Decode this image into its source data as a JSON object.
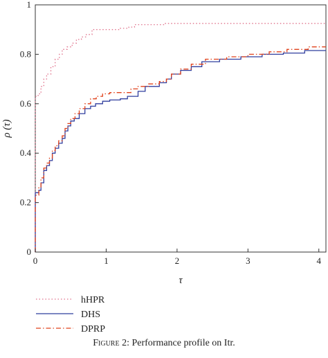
{
  "chart_data": {
    "type": "line",
    "title": "",
    "xlabel": "τ",
    "ylabel": "ρ (τ)",
    "xlim": [
      0,
      4.1
    ],
    "ylim": [
      0,
      1
    ],
    "xticks": [
      0,
      1,
      2,
      3,
      4
    ],
    "xtick_labels": [
      "0",
      "1",
      "2",
      "3",
      "4"
    ],
    "yticks": [
      0,
      0.2,
      0.4,
      0.6,
      0.8,
      1
    ],
    "ytick_labels": [
      "0",
      "0.2",
      "0.4",
      "0.6",
      "0.8",
      "1"
    ],
    "grid": false,
    "legend_position": "below-left",
    "series": [
      {
        "name": "hHPR",
        "color": "#e0708a",
        "dash": "dotted",
        "x": [
          0,
          0,
          0.04,
          0.08,
          0.12,
          0.16,
          0.22,
          0.28,
          0.34,
          0.38,
          0.45,
          0.52,
          0.58,
          0.65,
          0.72,
          0.8,
          1.0,
          1.2,
          1.32,
          1.4,
          1.6,
          1.82,
          1.9,
          2.5,
          3.0,
          3.5,
          4.1
        ],
        "y": [
          0,
          0.63,
          0.64,
          0.67,
          0.7,
          0.72,
          0.75,
          0.78,
          0.8,
          0.82,
          0.83,
          0.845,
          0.86,
          0.87,
          0.88,
          0.9,
          0.9,
          0.905,
          0.91,
          0.92,
          0.92,
          0.925,
          0.925,
          0.925,
          0.925,
          0.925,
          0.925
        ]
      },
      {
        "name": "DHS",
        "color": "#2f3d9e",
        "dash": "solid",
        "x": [
          0,
          0,
          0.05,
          0.08,
          0.12,
          0.16,
          0.2,
          0.24,
          0.28,
          0.33,
          0.38,
          0.42,
          0.46,
          0.5,
          0.55,
          0.62,
          0.7,
          0.78,
          0.85,
          0.95,
          1.05,
          1.2,
          1.3,
          1.45,
          1.55,
          1.75,
          1.85,
          1.92,
          2.05,
          2.2,
          2.35,
          2.6,
          2.9,
          3.2,
          3.5,
          3.8,
          4.1
        ],
        "y": [
          0,
          0.24,
          0.25,
          0.28,
          0.33,
          0.35,
          0.37,
          0.4,
          0.42,
          0.44,
          0.46,
          0.49,
          0.51,
          0.53,
          0.54,
          0.56,
          0.58,
          0.59,
          0.6,
          0.61,
          0.615,
          0.62,
          0.63,
          0.65,
          0.67,
          0.685,
          0.7,
          0.72,
          0.735,
          0.75,
          0.77,
          0.78,
          0.79,
          0.8,
          0.805,
          0.815,
          0.815
        ]
      },
      {
        "name": "DPRP",
        "color": "#e0401a",
        "dash": "dashdot",
        "x": [
          0,
          0,
          0.05,
          0.08,
          0.12,
          0.16,
          0.2,
          0.24,
          0.28,
          0.33,
          0.38,
          0.42,
          0.46,
          0.5,
          0.56,
          0.62,
          0.7,
          0.78,
          0.86,
          0.95,
          1.05,
          1.25,
          1.35,
          1.45,
          1.6,
          1.75,
          1.85,
          1.92,
          2.05,
          2.2,
          2.4,
          2.7,
          3.0,
          3.3,
          3.55,
          3.85,
          4.1
        ],
        "y": [
          0,
          0.23,
          0.26,
          0.3,
          0.34,
          0.36,
          0.38,
          0.41,
          0.43,
          0.45,
          0.47,
          0.5,
          0.52,
          0.54,
          0.56,
          0.58,
          0.6,
          0.62,
          0.63,
          0.64,
          0.645,
          0.645,
          0.66,
          0.67,
          0.68,
          0.69,
          0.7,
          0.72,
          0.74,
          0.76,
          0.78,
          0.79,
          0.8,
          0.81,
          0.82,
          0.83,
          0.83
        ]
      }
    ]
  },
  "caption": {
    "prefix": "Figure 2:",
    "text": " Performance profile on Itr."
  }
}
